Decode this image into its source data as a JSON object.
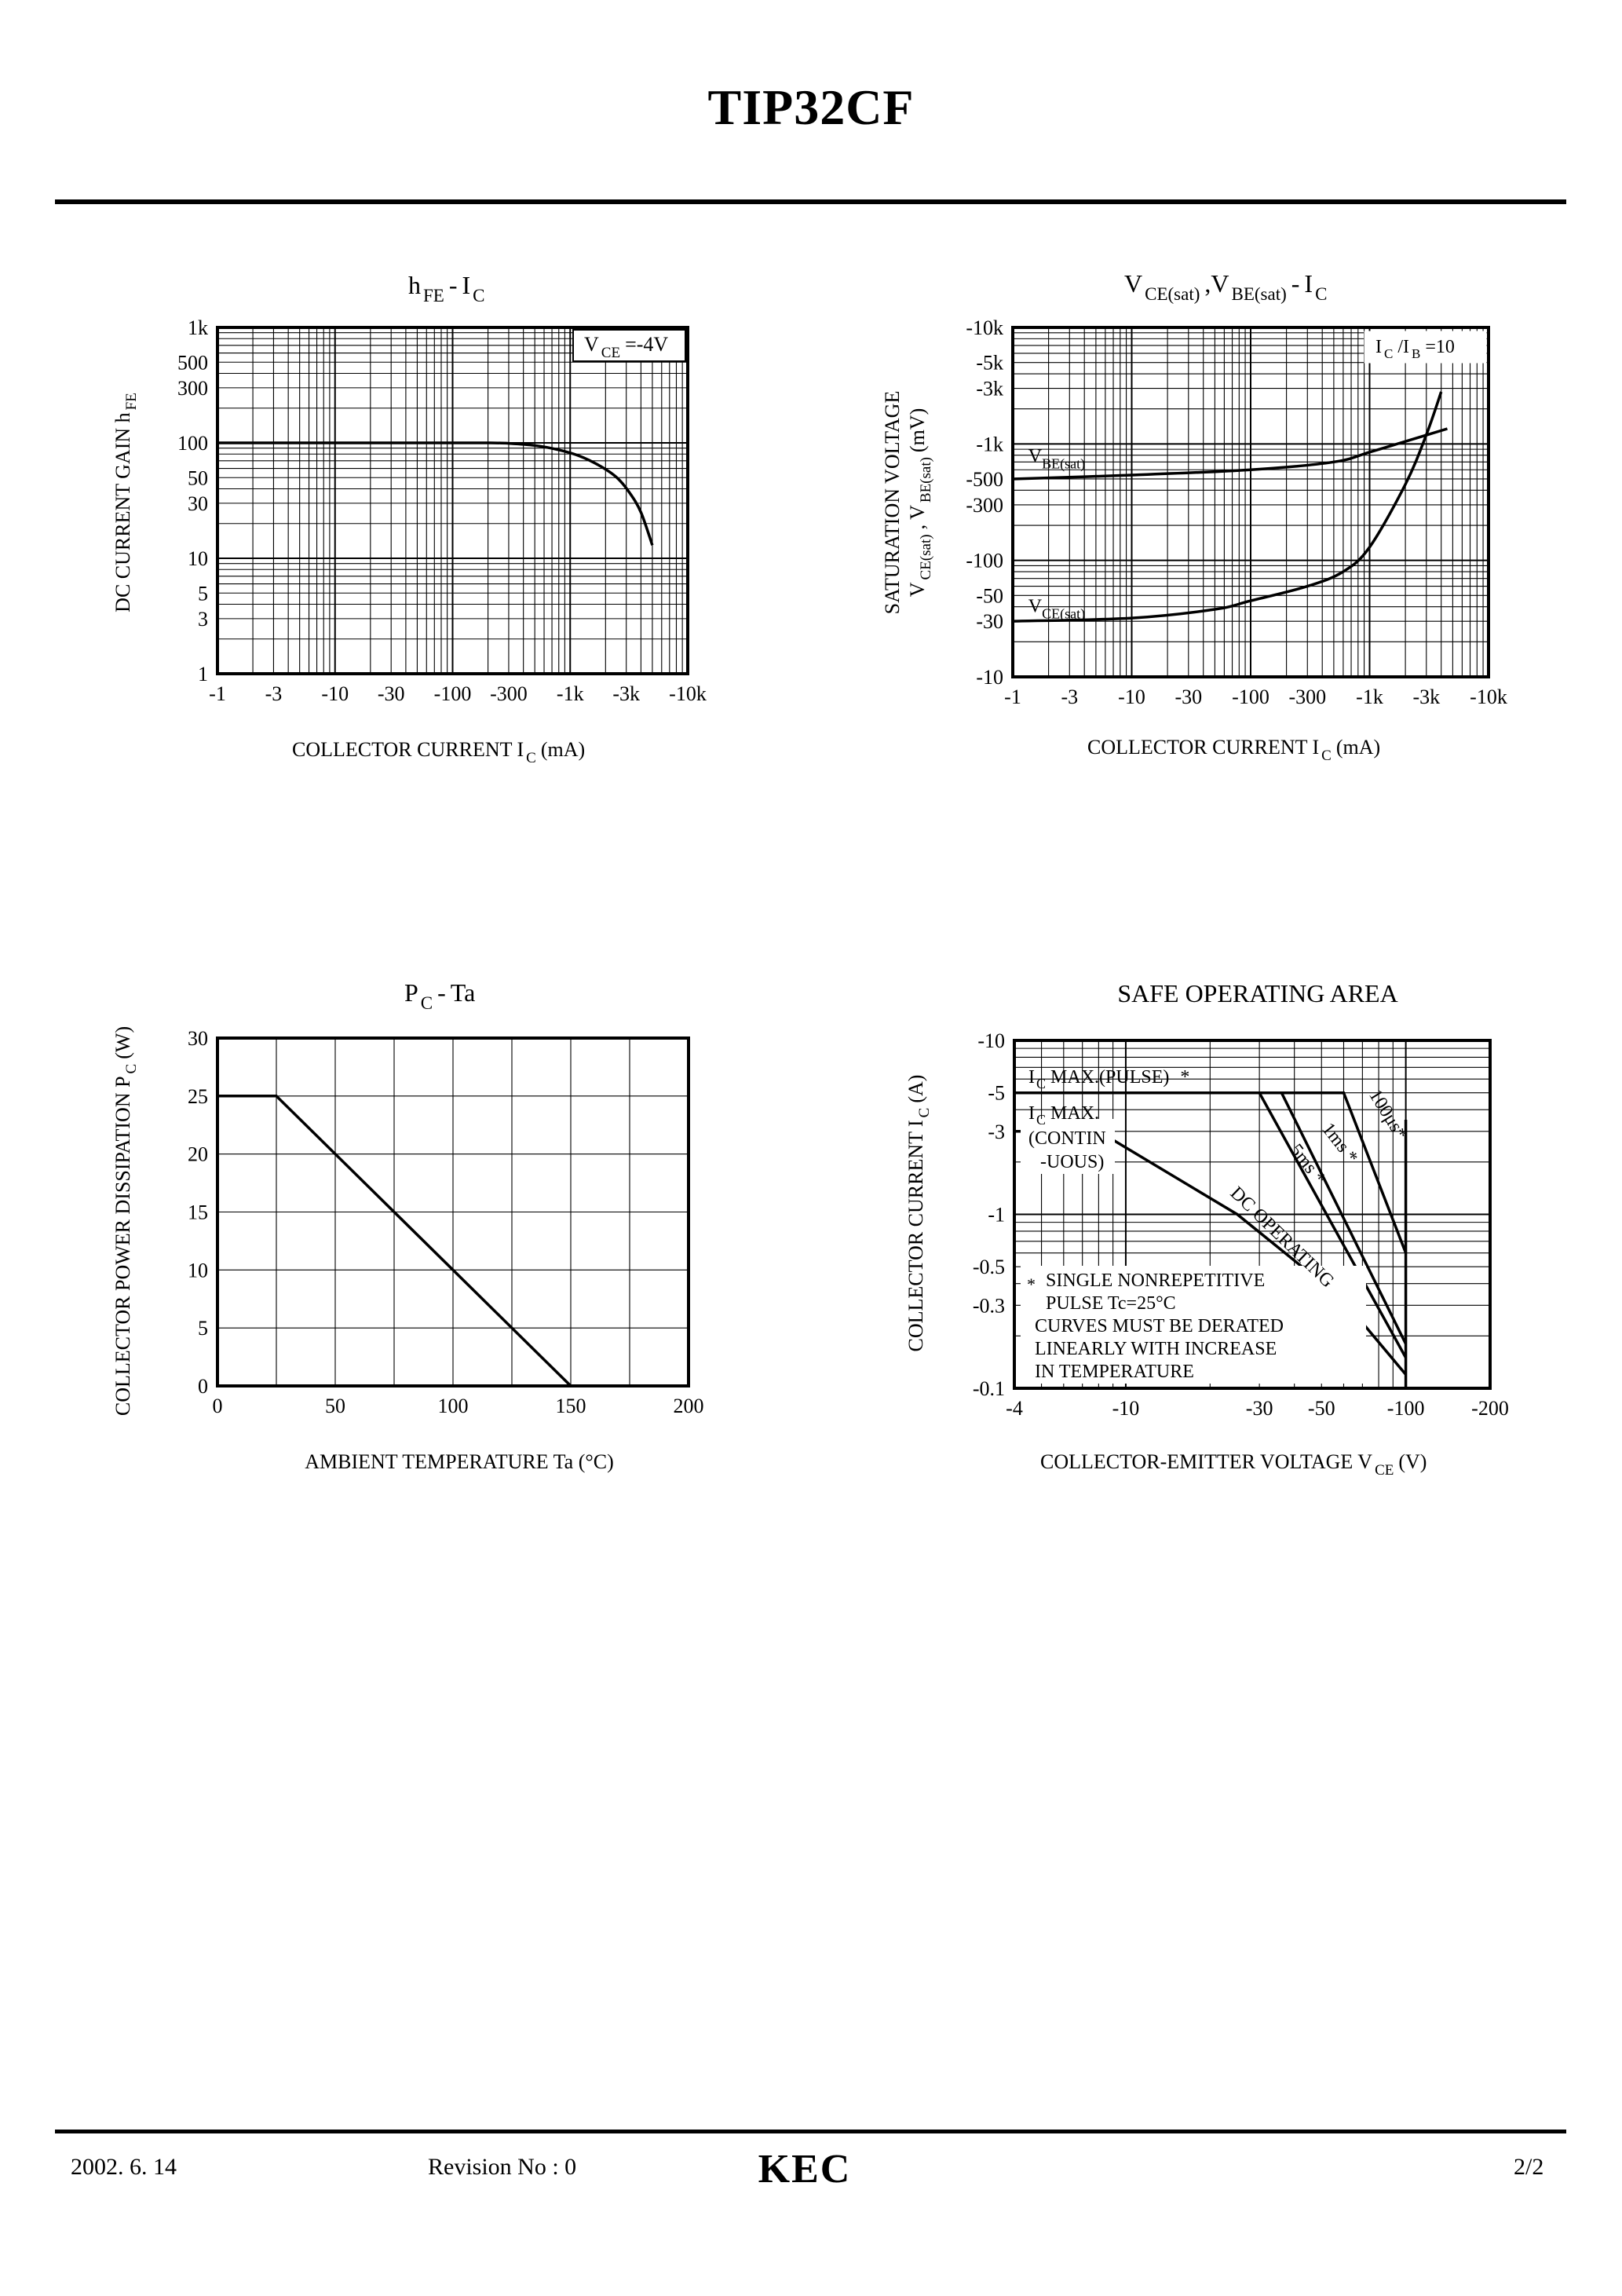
{
  "page": {
    "title": "TIP32CF",
    "footer_date": "2002. 6. 14",
    "footer_revision": "Revision No : 0",
    "footer_page": "2/2",
    "logo_text": "KEC"
  },
  "chart_data": [
    {
      "id": "hfe",
      "type": "line",
      "title_parts": [
        "h",
        "FE",
        "-",
        "I",
        "C"
      ],
      "xlabel_parts": [
        "COLLECTOR CURRENT I",
        "C",
        "(mA)"
      ],
      "ylabel_parts": [
        "DC CURRENT GAIN h",
        "FE"
      ],
      "annotation_parts": [
        "V",
        "CE",
        "=-4V"
      ],
      "x_scale": "log",
      "y_scale": "log",
      "xlim": [
        1,
        10000
      ],
      "ylim": [
        1,
        1000
      ],
      "x_ticks": [
        {
          "v": 1,
          "label": "-1"
        },
        {
          "v": 3,
          "label": "-3"
        },
        {
          "v": 10,
          "label": "-10"
        },
        {
          "v": 30,
          "label": "-30"
        },
        {
          "v": 100,
          "label": "-100"
        },
        {
          "v": 300,
          "label": "-300"
        },
        {
          "v": 1000,
          "label": "-1k"
        },
        {
          "v": 3000,
          "label": "-3k"
        },
        {
          "v": 10000,
          "label": "-10k"
        }
      ],
      "y_ticks": [
        {
          "v": 1,
          "label": "1"
        },
        {
          "v": 3,
          "label": "3"
        },
        {
          "v": 5,
          "label": "5"
        },
        {
          "v": 10,
          "label": "10"
        },
        {
          "v": 30,
          "label": "30"
        },
        {
          "v": 50,
          "label": "50"
        },
        {
          "v": 100,
          "label": "100"
        },
        {
          "v": 300,
          "label": "300"
        },
        {
          "v": 500,
          "label": "500"
        },
        {
          "v": 1000,
          "label": "1k"
        }
      ],
      "series": [
        {
          "name": "hFE",
          "x": [
            1,
            10,
            100,
            200,
            300,
            500,
            800,
            1200,
            1800,
            2500,
            3200,
            4000,
            5000
          ],
          "y": [
            100,
            100,
            100,
            100,
            99,
            95,
            87,
            77,
            63,
            50,
            37,
            25,
            13
          ]
        }
      ]
    },
    {
      "id": "sat",
      "type": "line",
      "title_parts": [
        "V",
        "CE(sat)",
        ",V",
        "BE(sat)",
        "-",
        "I",
        "C"
      ],
      "xlabel_parts": [
        "COLLECTOR CURRENT I",
        "C",
        "(mA)"
      ],
      "ylabel1": "SATURATION VOLTAGE",
      "ylabel2_parts": [
        "V",
        "CE(sat)",
        ", V",
        "BE(sat)",
        "(mV)"
      ],
      "annotation_parts": [
        "I",
        "C",
        "/I",
        "B",
        "=10"
      ],
      "x_scale": "log",
      "y_scale": "log",
      "xlim": [
        1,
        10000
      ],
      "ylim": [
        10,
        10000
      ],
      "x_ticks": [
        {
          "v": 1,
          "label": "-1"
        },
        {
          "v": 3,
          "label": "-3"
        },
        {
          "v": 10,
          "label": "-10"
        },
        {
          "v": 30,
          "label": "-30"
        },
        {
          "v": 100,
          "label": "-100"
        },
        {
          "v": 300,
          "label": "-300"
        },
        {
          "v": 1000,
          "label": "-1k"
        },
        {
          "v": 3000,
          "label": "-3k"
        },
        {
          "v": 10000,
          "label": "-10k"
        }
      ],
      "y_ticks": [
        {
          "v": 10,
          "label": "-10"
        },
        {
          "v": 30,
          "label": "-30"
        },
        {
          "v": 50,
          "label": "-50"
        },
        {
          "v": 100,
          "label": "-100"
        },
        {
          "v": 300,
          "label": "-300"
        },
        {
          "v": 500,
          "label": "-500"
        },
        {
          "v": 1000,
          "label": "-1k"
        },
        {
          "v": 3000,
          "label": "-3k"
        },
        {
          "v": 5000,
          "label": "-5k"
        },
        {
          "v": 10000,
          "label": "-10k"
        }
      ],
      "series": [
        {
          "name": "V",
          "sub": "BE(sat)",
          "label_at": [
            1.35,
            700
          ],
          "x": [
            1,
            10,
            100,
            500,
            1000,
            2000,
            4500
          ],
          "y": [
            500,
            540,
            600,
            700,
            850,
            1050,
            1350
          ]
        },
        {
          "name": "V",
          "sub": "CE(sat)",
          "label_at": [
            1.35,
            36
          ],
          "x": [
            1,
            10,
            50,
            100,
            300,
            600,
            1000,
            2000,
            3000,
            4000
          ],
          "y": [
            30,
            32,
            38,
            45,
            60,
            80,
            130,
            450,
            1200,
            2800
          ]
        }
      ]
    },
    {
      "id": "pc",
      "type": "line",
      "title_parts": [
        "P",
        "C",
        "-",
        "Ta"
      ],
      "xlabel": "AMBIENT TEMPERATURE Ta (°C)",
      "ylabel_parts": [
        "COLLECTOR POWER DISSIPATION P",
        "C",
        "(W)"
      ],
      "x_scale": "linear",
      "y_scale": "linear",
      "xlim": [
        0,
        200
      ],
      "ylim": [
        0,
        30
      ],
      "x_ticks": [
        {
          "v": 0,
          "label": "0"
        },
        {
          "v": 50,
          "label": "50"
        },
        {
          "v": 100,
          "label": "100"
        },
        {
          "v": 150,
          "label": "150"
        },
        {
          "v": 200,
          "label": "200"
        }
      ],
      "y_ticks": [
        {
          "v": 0,
          "label": "0"
        },
        {
          "v": 5,
          "label": "5"
        },
        {
          "v": 10,
          "label": "10"
        },
        {
          "v": 15,
          "label": "15"
        },
        {
          "v": 20,
          "label": "20"
        },
        {
          "v": 25,
          "label": "25"
        },
        {
          "v": 30,
          "label": "30"
        }
      ],
      "series": [
        {
          "name": "PC",
          "x": [
            0,
            25,
            150
          ],
          "y": [
            25,
            25,
            0
          ]
        }
      ]
    },
    {
      "id": "soa",
      "type": "line",
      "title": "SAFE OPERATING AREA",
      "xlabel_parts": [
        "COLLECTOR-EMITTER VOLTAGE V",
        "CE",
        "(V)"
      ],
      "ylabel_parts": [
        "COLLECTOR CURRENT I",
        "C",
        "(A)"
      ],
      "x_scale": "log",
      "y_scale": "log",
      "xlim": [
        4,
        200
      ],
      "ylim": [
        0.1,
        10
      ],
      "x_ticks": [
        {
          "v": 4,
          "label": "-4"
        },
        {
          "v": 10,
          "label": "-10"
        },
        {
          "v": 30,
          "label": "-30"
        },
        {
          "v": 50,
          "label": "-50"
        },
        {
          "v": 100,
          "label": "-100"
        },
        {
          "v": 200,
          "label": "-200"
        }
      ],
      "y_ticks": [
        {
          "v": 0.1,
          "label": "-0.1"
        },
        {
          "v": 0.3,
          "label": "-0.3"
        },
        {
          "v": 0.5,
          "label": "-0.5"
        },
        {
          "v": 1,
          "label": "-1"
        },
        {
          "v": 3,
          "label": "-3"
        },
        {
          "v": 5,
          "label": "-5"
        },
        {
          "v": 10,
          "label": "-10"
        }
      ],
      "ic_max_pulse_parts": [
        "I",
        "C",
        "MAX.(PULSE)",
        "*"
      ],
      "ic_max_parts": [
        "I",
        "C",
        "MAX."
      ],
      "contin_lines": [
        "(CONTIN",
        "-UOUS)"
      ],
      "note_lines": [
        "SINGLE NONREPETITIVE",
        "PULSE Tc=25°C",
        "CURVES MUST BE DERATED",
        "LINEARLY WITH INCREASE",
        "IN TEMPERATURE"
      ],
      "note_star": "*",
      "series": [
        {
          "name": "DC OPERATING",
          "x": [
            4,
            8,
            25,
            60,
            100
          ],
          "y": [
            3,
            3,
            1,
            0.32,
            0.12
          ]
        },
        {
          "name": "5ms *",
          "x": [
            4,
            30,
            100
          ],
          "y": [
            5,
            5,
            0.15
          ]
        },
        {
          "name": "1ms *",
          "x": [
            4,
            36,
            100
          ],
          "y": [
            5,
            5,
            0.18
          ]
        },
        {
          "name": "100μs*",
          "x": [
            4,
            60,
            100
          ],
          "y": [
            5,
            5,
            0.6
          ]
        },
        {
          "name": "VCEO limit",
          "x": [
            100,
            100
          ],
          "y": [
            0.1,
            3.5
          ]
        }
      ],
      "curve_labels": [
        {
          "text": "DC OPERATING",
          "at": [
            35,
            0.7
          ],
          "angle": 44
        },
        {
          "text": "5ms *",
          "at": [
            43,
            1.85
          ],
          "angle": 52
        },
        {
          "text": "1ms *",
          "at": [
            56,
            2.45
          ],
          "angle": 52
        },
        {
          "text": "100μs*",
          "at": [
            83,
            3.6
          ],
          "angle": 58
        }
      ]
    }
  ]
}
